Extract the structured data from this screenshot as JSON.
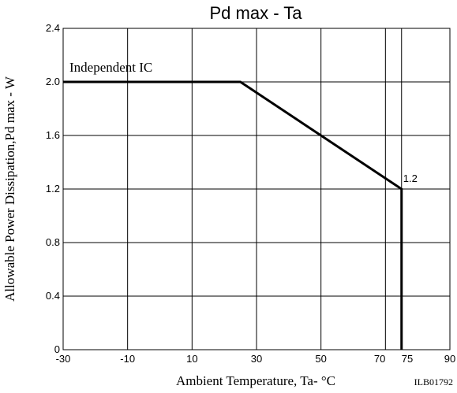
{
  "chart_data": {
    "type": "line",
    "title": "Pd max - Ta",
    "xlabel": "Ambient Temperature, Ta- °C",
    "ylabel": "Allowable Power Dissipation,Pd max - W",
    "xlim": [
      -30,
      90
    ],
    "ylim": [
      0,
      2.4
    ],
    "xticks": [
      -30,
      -10,
      10,
      30,
      50,
      70,
      75,
      90
    ],
    "xtick_labels": [
      "-30",
      "-10",
      "10",
      "30",
      "50",
      "70",
      "75",
      "90"
    ],
    "yticks": [
      0,
      0.4,
      0.8,
      1.2,
      1.6,
      2.0,
      2.4
    ],
    "ytick_labels": [
      "0",
      "0.4",
      "0.8",
      "1.2",
      "1.6",
      "2.0",
      "2.4"
    ],
    "grid": true,
    "series": [
      {
        "name": "Independent IC",
        "x": [
          -30,
          25,
          75,
          75
        ],
        "y": [
          2.0,
          2.0,
          1.2,
          0
        ]
      }
    ],
    "annotations": [
      {
        "text": "1.2",
        "x": 75,
        "y": 1.2
      }
    ],
    "footnote": "ILB01792"
  }
}
